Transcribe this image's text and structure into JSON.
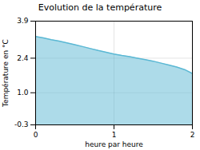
{
  "chart_data": {
    "type": "area",
    "title": "Evolution de la température",
    "xlabel": "heure par heure",
    "ylabel": "Température en °C",
    "x": [
      0,
      0.1,
      0.2,
      0.3,
      0.4,
      0.5,
      0.6,
      0.7,
      0.8,
      0.9,
      1.0,
      1.1,
      1.2,
      1.3,
      1.4,
      1.5,
      1.6,
      1.7,
      1.8,
      1.9,
      2.0
    ],
    "values": [
      3.28,
      3.22,
      3.15,
      3.09,
      3.02,
      2.95,
      2.87,
      2.79,
      2.71,
      2.64,
      2.57,
      2.51,
      2.46,
      2.4,
      2.34,
      2.28,
      2.2,
      2.12,
      2.04,
      1.94,
      1.78
    ],
    "color": "#5bb8d4",
    "xlim": [
      0,
      2
    ],
    "xticks": [
      0,
      1,
      2
    ],
    "ylim": [
      -0.3,
      3.9
    ],
    "yticks": [
      -0.3,
      {
        "value": 1.0,
        "label": "1.0"
      },
      2.4,
      3.9
    ],
    "grid": true
  }
}
